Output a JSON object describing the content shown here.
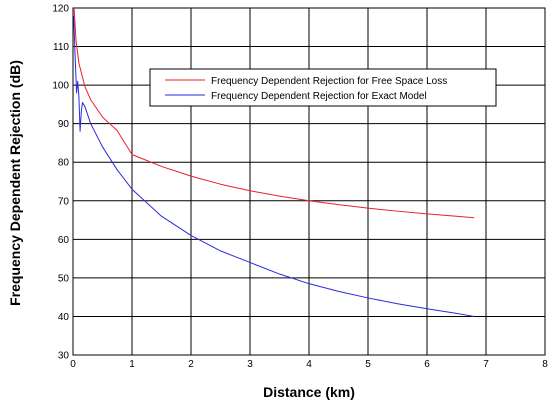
{
  "chart_data": {
    "type": "line",
    "title": "",
    "xlabel": "Distance (km)",
    "ylabel": "Frequency Dependent Rejection (dB)",
    "xlim": [
      0,
      8
    ],
    "ylim": [
      30,
      120
    ],
    "xticks": [
      0,
      1,
      2,
      3,
      4,
      5,
      6,
      7,
      8
    ],
    "yticks": [
      30,
      40,
      50,
      60,
      70,
      80,
      90,
      100,
      110,
      120
    ],
    "grid": true,
    "legend_position": "upper-right",
    "series": [
      {
        "name": "Frequency Dependent Rejection for Free Space Loss",
        "color": "#e8212a",
        "x": [
          0.02,
          0.05,
          0.1,
          0.2,
          0.3,
          0.5,
          0.75,
          1.0,
          1.5,
          2.0,
          2.5,
          3.0,
          3.5,
          4.0,
          4.5,
          5.0,
          5.5,
          6.0,
          6.5,
          6.8
        ],
        "y": [
          119.7,
          111.7,
          105.7,
          99.7,
          96.2,
          91.7,
          88.2,
          82.0,
          78.9,
          76.4,
          74.3,
          72.6,
          71.2,
          70.0,
          69.0,
          68.1,
          67.3,
          66.6,
          66.0,
          65.6
        ]
      },
      {
        "name": "Frequency Dependent Rejection for Exact Model",
        "color": "#2a2ae0",
        "x": [
          0.01,
          0.03,
          0.06,
          0.08,
          0.1,
          0.12,
          0.14,
          0.16,
          0.2,
          0.3,
          0.5,
          0.75,
          1.0,
          1.5,
          2.0,
          2.5,
          3.0,
          3.5,
          4.0,
          4.5,
          5.0,
          5.5,
          6.0,
          6.5,
          6.8
        ],
        "y": [
          118,
          110,
          98,
          101,
          97,
          88,
          93,
          95.5,
          94.5,
          90,
          84,
          78,
          73,
          66,
          61,
          57,
          54,
          51,
          48.5,
          46.5,
          44.8,
          43.3,
          42,
          40.8,
          40
        ]
      }
    ]
  }
}
